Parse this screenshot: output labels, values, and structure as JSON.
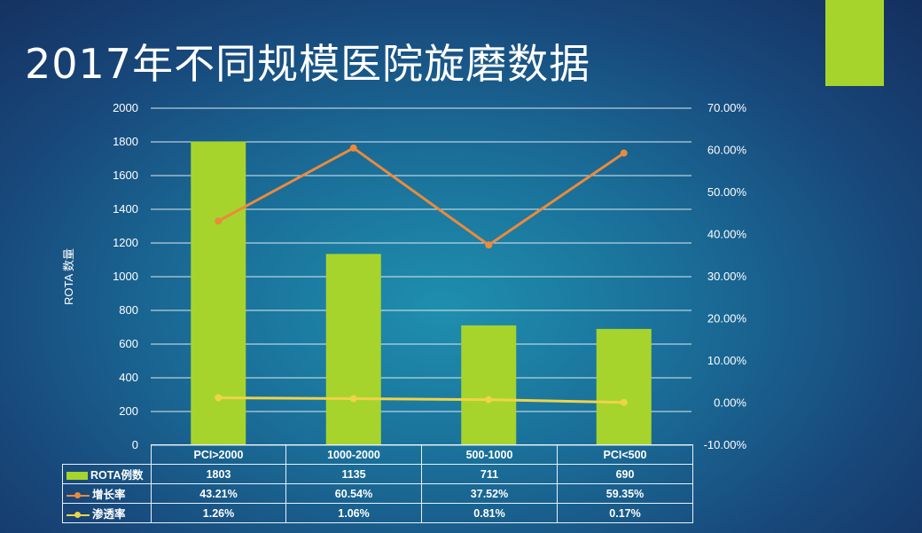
{
  "slide": {
    "title": "2017年不同规模医院旋磨数据"
  },
  "colors": {
    "bar": "#a6d42c",
    "growth_line": "#ec8a3c",
    "penetration_line": "#efd34a",
    "accent_block": "#a6d42c"
  },
  "chart_data": {
    "type": "bar",
    "title": "",
    "categories": [
      "PCI>2000",
      "1000-2000",
      "500-1000",
      "PCI<500"
    ],
    "ylabel": "ROTA 数量",
    "ylim": [
      0,
      2000
    ],
    "y_ticks": [
      "0",
      "200",
      "400",
      "600",
      "800",
      "1000",
      "1200",
      "1400",
      "1600",
      "1800",
      "2000"
    ],
    "y2lim": [
      -0.1,
      0.7
    ],
    "y2_ticks": [
      "-10.00%",
      "0.00%",
      "10.00%",
      "20.00%",
      "30.00%",
      "40.00%",
      "50.00%",
      "60.00%",
      "70.00%"
    ],
    "grid": true,
    "legend": "data-table",
    "series": [
      {
        "name": "ROTA例数",
        "type": "bar",
        "axis": "left",
        "values": [
          1803,
          1135,
          711,
          690
        ],
        "labels": [
          "1803",
          "1135",
          "711",
          "690"
        ]
      },
      {
        "name": "增长率",
        "type": "line",
        "axis": "right",
        "values": [
          0.4321,
          0.6054,
          0.3752,
          0.5935
        ],
        "labels": [
          "43.21%",
          "60.54%",
          "37.52%",
          "59.35%"
        ]
      },
      {
        "name": "渗透率",
        "type": "line",
        "axis": "right",
        "values": [
          0.0126,
          0.0106,
          0.0081,
          0.0017
        ],
        "labels": [
          "1.26%",
          "1.06%",
          "0.81%",
          "0.17%"
        ]
      }
    ]
  }
}
